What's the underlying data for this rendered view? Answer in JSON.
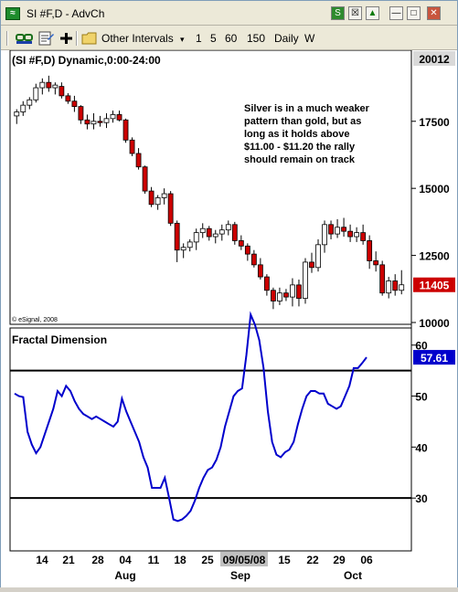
{
  "window": {
    "title": "SI #F,D - AdvCh",
    "app_icon": "chart-app-icon",
    "controls": [
      "S",
      "☒",
      "▲",
      "—",
      "□",
      "✕"
    ]
  },
  "toolbar": {
    "tools": [
      "link-icon",
      "properties-icon",
      "plus-icon",
      "folder-icon"
    ],
    "interval_label": "Other Intervals",
    "interval_arrow": "▾",
    "intervals": [
      "1",
      "5",
      "60",
      "150",
      "Daily",
      "W"
    ]
  },
  "price_panel": {
    "header": "(SI #F,D) Dynamic,0:00-24:00",
    "annotation_lines": [
      "Silver is in a much weaker",
      "pattern than gold, but as",
      "long as it holds above",
      "$11.00 - $11.20 the rally",
      "should remain on track"
    ],
    "copyright": "© eSignal, 2008",
    "top_value": "20012",
    "current_price": "11405"
  },
  "indicator_panel": {
    "header": "Fractal Dimension",
    "current_value": "57.61"
  },
  "x_axis": {
    "day_labels": [
      "14",
      "21",
      "28",
      "04",
      "11",
      "18",
      "25",
      "09/05/08",
      "15",
      "22",
      "29",
      "06"
    ],
    "month_labels": [
      "Aug",
      "Sep",
      "Oct"
    ]
  },
  "colors": {
    "up_candle": "#ffffff",
    "down_candle": "#cc0000",
    "indicator_line": "#0000cc",
    "price_tag": "#cc0000",
    "indicator_tag": "#0000cc"
  },
  "chart_data": [
    {
      "type": "candlestick",
      "title": "(SI #F,D) Dynamic,0:00-24:00",
      "ylim": [
        10000,
        20012
      ],
      "y_ticks": [
        10000,
        12500,
        15000,
        17500
      ],
      "highlight_value": 11405,
      "ohlc": [
        {
          "o": 17700,
          "h": 17950,
          "l": 17400,
          "c": 17850
        },
        {
          "o": 17850,
          "h": 18250,
          "l": 17700,
          "c": 18100
        },
        {
          "o": 18100,
          "h": 18400,
          "l": 17950,
          "c": 18300
        },
        {
          "o": 18300,
          "h": 18900,
          "l": 18200,
          "c": 18750
        },
        {
          "o": 18750,
          "h": 19100,
          "l": 18500,
          "c": 18950
        },
        {
          "o": 18950,
          "h": 19200,
          "l": 18600,
          "c": 18750
        },
        {
          "o": 18750,
          "h": 18950,
          "l": 18500,
          "c": 18850
        },
        {
          "o": 18800,
          "h": 18950,
          "l": 18350,
          "c": 18450
        },
        {
          "o": 18450,
          "h": 18550,
          "l": 18150,
          "c": 18250
        },
        {
          "o": 18250,
          "h": 18450,
          "l": 17850,
          "c": 18050
        },
        {
          "o": 18050,
          "h": 18100,
          "l": 17400,
          "c": 17550
        },
        {
          "o": 17550,
          "h": 17750,
          "l": 17200,
          "c": 17400
        },
        {
          "o": 17400,
          "h": 17800,
          "l": 17200,
          "c": 17500
        },
        {
          "o": 17500,
          "h": 17700,
          "l": 17300,
          "c": 17450
        },
        {
          "o": 17450,
          "h": 17800,
          "l": 17250,
          "c": 17600
        },
        {
          "o": 17600,
          "h": 17900,
          "l": 17450,
          "c": 17750
        },
        {
          "o": 17750,
          "h": 17900,
          "l": 17500,
          "c": 17550
        },
        {
          "o": 17550,
          "h": 17600,
          "l": 16700,
          "c": 16800
        },
        {
          "o": 16800,
          "h": 16900,
          "l": 16200,
          "c": 16300
        },
        {
          "o": 16300,
          "h": 16500,
          "l": 15700,
          "c": 15800
        },
        {
          "o": 15800,
          "h": 15850,
          "l": 14800,
          "c": 14900
        },
        {
          "o": 14900,
          "h": 15050,
          "l": 14300,
          "c": 14400
        },
        {
          "o": 14400,
          "h": 14750,
          "l": 14200,
          "c": 14650
        },
        {
          "o": 14650,
          "h": 15000,
          "l": 14400,
          "c": 14800
        },
        {
          "o": 14800,
          "h": 14900,
          "l": 13600,
          "c": 13700
        },
        {
          "o": 13700,
          "h": 13800,
          "l": 12250,
          "c": 12700
        },
        {
          "o": 12700,
          "h": 12950,
          "l": 12400,
          "c": 12800
        },
        {
          "o": 12800,
          "h": 13100,
          "l": 12650,
          "c": 13000
        },
        {
          "o": 13000,
          "h": 13500,
          "l": 12700,
          "c": 13350
        },
        {
          "o": 13350,
          "h": 13700,
          "l": 13150,
          "c": 13500
        },
        {
          "o": 13500,
          "h": 13600,
          "l": 13050,
          "c": 13200
        },
        {
          "o": 13200,
          "h": 13450,
          "l": 12950,
          "c": 13300
        },
        {
          "o": 13300,
          "h": 13650,
          "l": 13050,
          "c": 13450
        },
        {
          "o": 13450,
          "h": 13800,
          "l": 13250,
          "c": 13650
        },
        {
          "o": 13650,
          "h": 13750,
          "l": 12900,
          "c": 13050
        },
        {
          "o": 13050,
          "h": 13250,
          "l": 12700,
          "c": 12850
        },
        {
          "o": 12850,
          "h": 12950,
          "l": 12300,
          "c": 12550
        },
        {
          "o": 12550,
          "h": 12700,
          "l": 12050,
          "c": 12150
        },
        {
          "o": 12150,
          "h": 12400,
          "l": 11600,
          "c": 11700
        },
        {
          "o": 11700,
          "h": 11800,
          "l": 11000,
          "c": 11200
        },
        {
          "o": 11200,
          "h": 11300,
          "l": 10500,
          "c": 10800
        },
        {
          "o": 10800,
          "h": 11300,
          "l": 10650,
          "c": 11100
        },
        {
          "o": 11100,
          "h": 11250,
          "l": 10800,
          "c": 10950
        },
        {
          "o": 10950,
          "h": 11650,
          "l": 10600,
          "c": 11400
        },
        {
          "o": 11400,
          "h": 11600,
          "l": 10600,
          "c": 10900
        },
        {
          "o": 10900,
          "h": 12400,
          "l": 10700,
          "c": 12250
        },
        {
          "o": 12250,
          "h": 12600,
          "l": 11850,
          "c": 12050
        },
        {
          "o": 12050,
          "h": 13100,
          "l": 11900,
          "c": 12900
        },
        {
          "o": 12900,
          "h": 13800,
          "l": 12600,
          "c": 13650
        },
        {
          "o": 13650,
          "h": 13800,
          "l": 13100,
          "c": 13300
        },
        {
          "o": 13300,
          "h": 13850,
          "l": 13150,
          "c": 13550
        },
        {
          "o": 13550,
          "h": 13900,
          "l": 13200,
          "c": 13400
        },
        {
          "o": 13400,
          "h": 13650,
          "l": 13000,
          "c": 13200
        },
        {
          "o": 13200,
          "h": 13550,
          "l": 13000,
          "c": 13350
        },
        {
          "o": 13350,
          "h": 13650,
          "l": 12900,
          "c": 13050
        },
        {
          "o": 13050,
          "h": 13250,
          "l": 12000,
          "c": 12300
        },
        {
          "o": 12300,
          "h": 12650,
          "l": 11900,
          "c": 12150
        },
        {
          "o": 12150,
          "h": 12300,
          "l": 11000,
          "c": 11100
        },
        {
          "o": 11100,
          "h": 11700,
          "l": 10900,
          "c": 11550
        },
        {
          "o": 11550,
          "h": 11800,
          "l": 11000,
          "c": 11200
        },
        {
          "o": 11200,
          "h": 11950,
          "l": 11050,
          "c": 11405
        }
      ]
    },
    {
      "type": "line",
      "title": "Fractal Dimension",
      "ylim": [
        20,
        63
      ],
      "y_ticks": [
        30,
        40,
        50,
        60
      ],
      "reference_lines": [
        55,
        30
      ],
      "series": [
        {
          "name": "Fractal Dimension",
          "values": [
            50.5,
            50,
            49.8,
            43,
            40.5,
            38.8,
            40,
            42.5,
            45,
            47.5,
            51,
            50,
            52,
            51,
            49,
            47.5,
            46.5,
            46,
            45.5,
            46,
            45.5,
            45,
            44.5,
            44,
            45,
            49.5,
            47,
            45,
            43,
            41,
            38,
            36,
            32,
            32,
            32,
            34,
            30,
            25.8,
            25.5,
            25.8,
            26.5,
            27.5,
            29.5,
            32,
            34,
            35.5,
            36,
            37.5,
            40,
            44,
            47,
            50,
            51,
            51.5,
            58,
            66,
            64,
            61,
            55.5,
            47,
            41,
            38.5,
            38,
            39,
            39.5,
            41,
            44.5,
            47.5,
            50,
            51,
            51,
            50.5,
            50.5,
            48.5,
            48,
            47.5,
            48,
            50,
            52,
            55.5,
            55.5,
            56.5,
            57.61
          ]
        }
      ]
    }
  ]
}
